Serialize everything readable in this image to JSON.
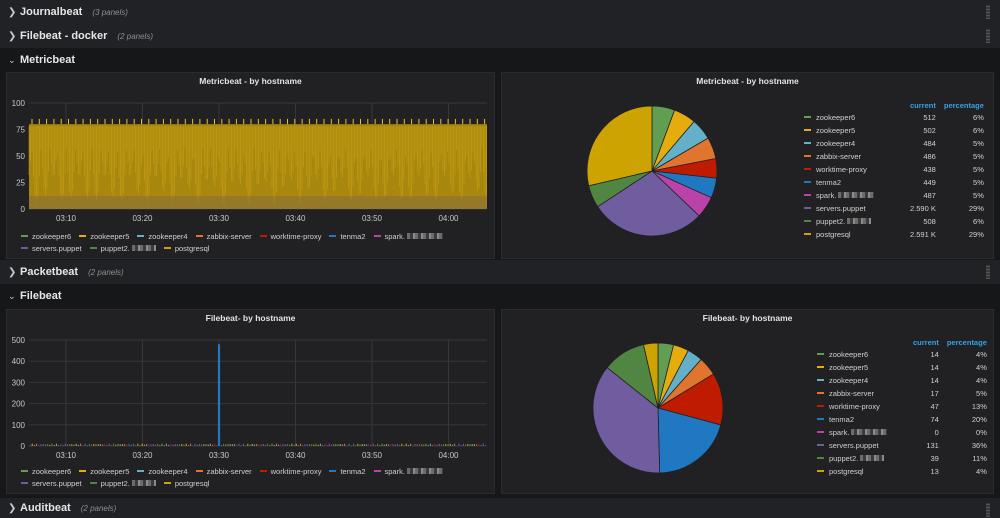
{
  "rows": {
    "journalbeat": {
      "title": "Journalbeat",
      "count": "(3 panels)"
    },
    "filebeat_docker": {
      "title": "Filebeat - docker",
      "count": "(2 panels)"
    },
    "metricbeat": {
      "title": "Metricbeat"
    },
    "packetbeat": {
      "title": "Packetbeat",
      "count": "(2 panels)"
    },
    "filebeat": {
      "title": "Filebeat"
    },
    "auditbeat": {
      "title": "Auditbeat",
      "count": "(2 panels)"
    }
  },
  "series": [
    {
      "name": "zookeeper6",
      "color": "#629e51"
    },
    {
      "name": "zookeeper5",
      "color": "#e5ac0e"
    },
    {
      "name": "zookeeper4",
      "color": "#64b0c8"
    },
    {
      "name": "zabbix-server",
      "color": "#e0752d"
    },
    {
      "name": "worktime-proxy",
      "color": "#bf1b00"
    },
    {
      "name": "tenma2",
      "color": "#1f78c1"
    },
    {
      "name": "spark.",
      "color": "#ba43a9"
    },
    {
      "name": "servers.puppet",
      "color": "#705da0"
    },
    {
      "name": "puppet2.",
      "color": "#508642"
    },
    {
      "name": "postgresql",
      "color": "#cca300"
    }
  ],
  "metricbeat_ts": {
    "title": "Metricbeat - by hostname",
    "chart_data": {
      "type": "area",
      "title": "Metricbeat - by hostname",
      "x_ticks": [
        "03:10",
        "03:20",
        "03:30",
        "03:40",
        "03:50",
        "04:00"
      ],
      "y_ticks": [
        "0",
        "25",
        "50",
        "75",
        "100"
      ],
      "ylim": [
        0,
        100
      ],
      "stacked_total_approx": 80,
      "spike_max_approx": 85
    }
  },
  "metricbeat_pie": {
    "title": "Metricbeat - by hostname",
    "header_current": "current",
    "header_percentage": "percentage",
    "chart_data": {
      "type": "pie",
      "labels": [
        "zookeeper6",
        "zookeeper5",
        "zookeeper4",
        "zabbix-server",
        "worktime-proxy",
        "tenma2",
        "spark.",
        "servers.puppet",
        "puppet2.",
        "postgresql"
      ],
      "values": [
        512,
        502,
        484,
        486,
        438,
        449,
        487,
        2590,
        508,
        2591
      ],
      "current": [
        "512",
        "502",
        "484",
        "486",
        "438",
        "449",
        "487",
        "2.590 K",
        "508",
        "2.591 K"
      ],
      "percentage": [
        "6%",
        "6%",
        "5%",
        "5%",
        "5%",
        "5%",
        "5%",
        "29%",
        "6%",
        "29%"
      ]
    }
  },
  "filebeat_ts": {
    "title": "Filebeat- by hostname",
    "chart_data": {
      "type": "bar",
      "title": "Filebeat- by hostname",
      "x_ticks": [
        "03:10",
        "03:20",
        "03:30",
        "03:40",
        "03:50",
        "04:00"
      ],
      "y_ticks": [
        "0",
        "100",
        "200",
        "300",
        "400",
        "500"
      ],
      "ylim": [
        0,
        500
      ],
      "spike": {
        "series": "tenma2",
        "time": "03:30",
        "value": 480
      }
    }
  },
  "filebeat_pie": {
    "title": "Filebeat- by hostname",
    "header_current": "current",
    "header_percentage": "percentage",
    "chart_data": {
      "type": "pie",
      "labels": [
        "zookeeper6",
        "zookeeper5",
        "zookeeper4",
        "zabbix-server",
        "worktime-proxy",
        "tenma2",
        "spark.",
        "servers.puppet",
        "puppet2.",
        "postgresql"
      ],
      "values": [
        14,
        14,
        14,
        17,
        47,
        74,
        0,
        131,
        39,
        13
      ],
      "current": [
        "14",
        "14",
        "14",
        "17",
        "47",
        "74",
        "0",
        "131",
        "39",
        "13"
      ],
      "percentage": [
        "4%",
        "4%",
        "4%",
        "5%",
        "13%",
        "20%",
        "0%",
        "36%",
        "11%",
        "4%"
      ]
    }
  }
}
